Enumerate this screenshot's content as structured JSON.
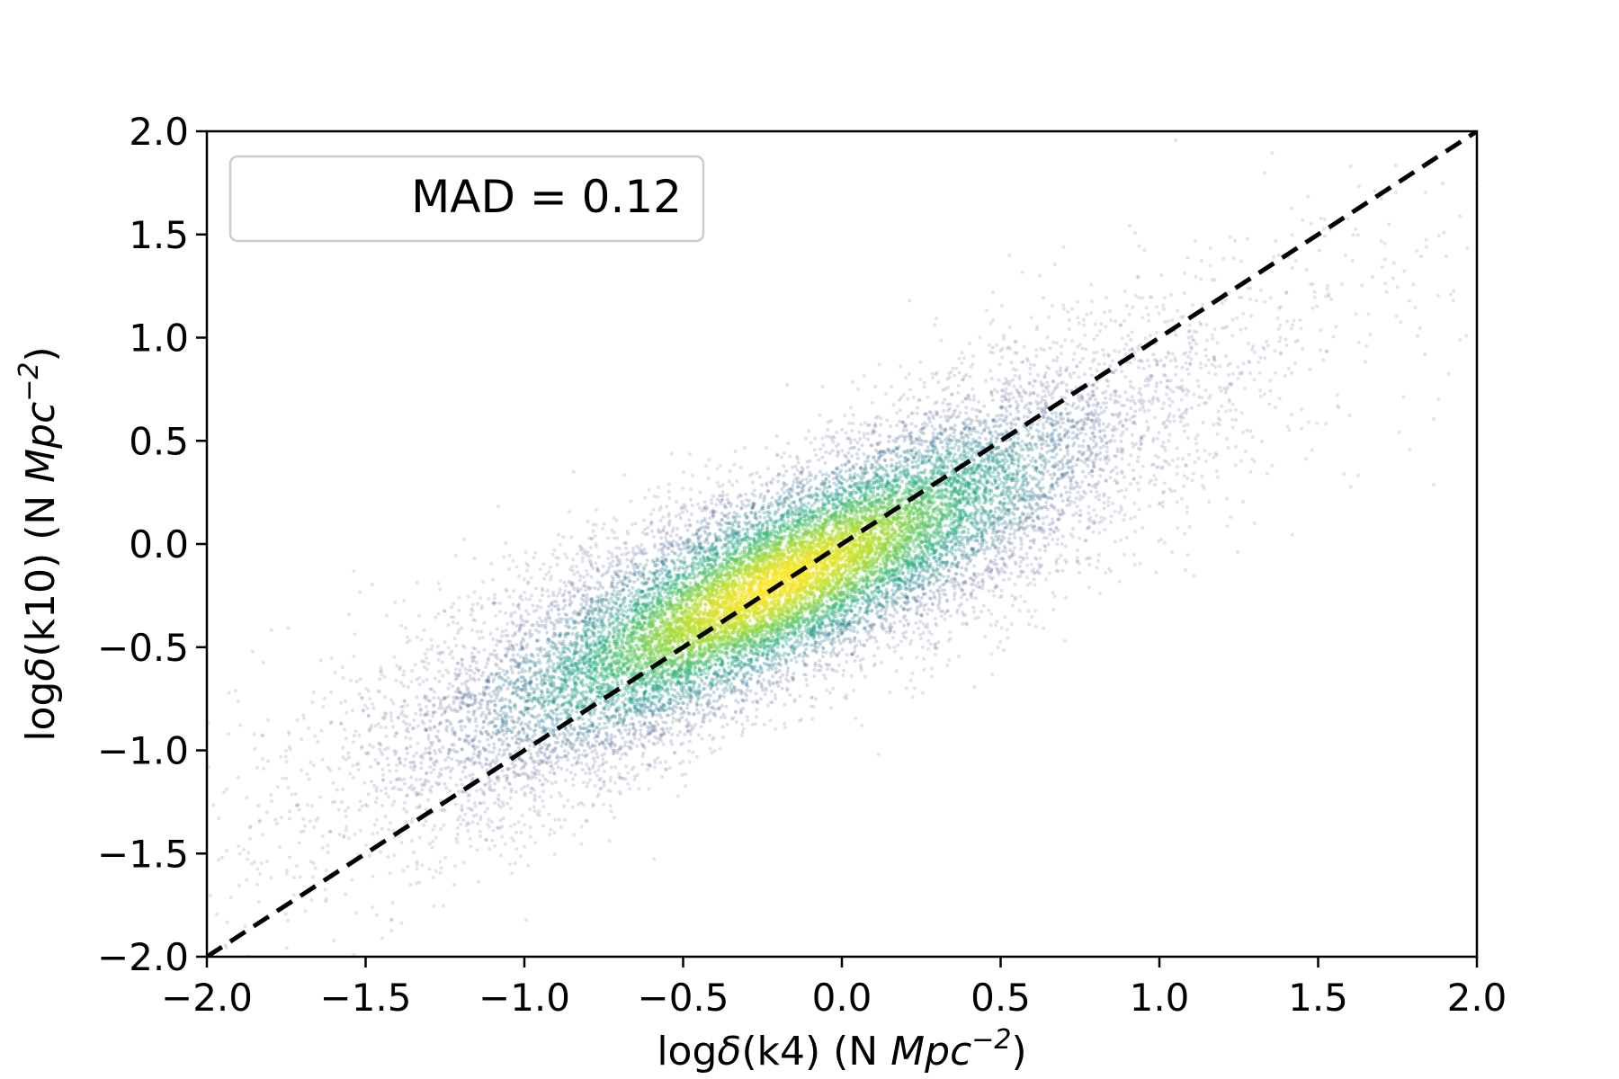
{
  "chart_data": {
    "type": "scatter",
    "title": "",
    "xlabel": {
      "prefix": "log",
      "delta": "δ",
      "middle": "(k4) (N ",
      "unit": "Mpc",
      "exp": "−2",
      "suffix": ")"
    },
    "ylabel": {
      "prefix": "log",
      "delta": "δ",
      "middle": "(k10) (N ",
      "unit": "Mpc",
      "exp": "−2",
      "suffix": ")"
    },
    "xlim": [
      -2.0,
      2.0
    ],
    "ylim": [
      -2.0,
      2.0
    ],
    "xticks": [
      -2.0,
      -1.5,
      -1.0,
      -0.5,
      0.0,
      0.5,
      1.0,
      1.5,
      2.0
    ],
    "yticks": [
      -2.0,
      -1.5,
      -1.0,
      -0.5,
      0.0,
      0.5,
      1.0,
      1.5,
      2.0
    ],
    "xtick_labels": [
      "−2.0",
      "−1.5",
      "−1.0",
      "−0.5",
      "0.0",
      "0.5",
      "1.0",
      "1.5",
      "2.0"
    ],
    "ytick_labels": [
      "−2.0",
      "−1.5",
      "−1.0",
      "−0.5",
      "0.0",
      "0.5",
      "1.0",
      "1.5",
      "2.0"
    ],
    "legend": {
      "text": "MAD = 0.12",
      "placement": "top-left"
    },
    "reference_line": {
      "style": "dashed",
      "color": "#000000",
      "x": [
        -2.0,
        2.0
      ],
      "y": [
        -2.0,
        2.0
      ]
    },
    "density": {
      "colormap": "viridis",
      "peak": {
        "x": -0.2,
        "y": -0.1
      },
      "trend": {
        "slope": 0.7,
        "intercept": -0.05
      },
      "x_range_of_points": [
        -2.0,
        2.0
      ]
    },
    "series": [
      {
        "points": [
          [
            -0.2,
            -0.1
          ],
          [
            -0.3,
            -0.15
          ],
          [
            -0.1,
            -0.05
          ],
          [
            0.0,
            0.0
          ],
          [
            0.2,
            0.1
          ],
          [
            -0.5,
            -0.3
          ],
          [
            -0.7,
            -0.45
          ],
          [
            0.4,
            0.2
          ],
          [
            0.6,
            0.3
          ],
          [
            -1.0,
            -0.7
          ],
          [
            -1.3,
            -1.0
          ],
          [
            0.8,
            0.4
          ],
          [
            1.0,
            0.6
          ],
          [
            1.3,
            0.8
          ],
          [
            -1.6,
            -1.3
          ],
          [
            -1.8,
            -1.6
          ],
          [
            1.6,
            0.9
          ],
          [
            1.8,
            1.0
          ]
        ]
      }
    ]
  }
}
